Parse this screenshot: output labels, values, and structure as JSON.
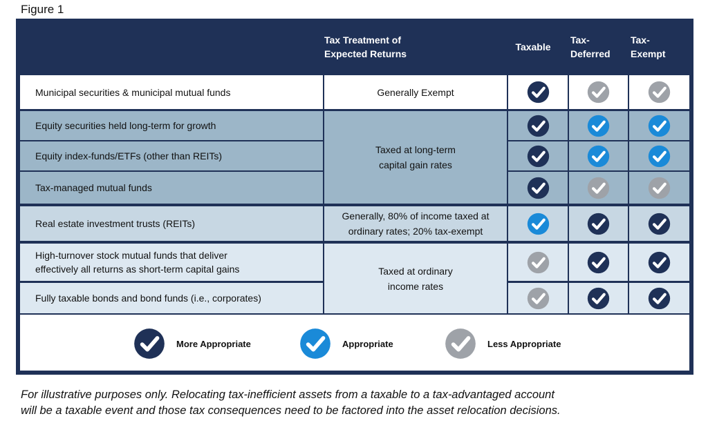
{
  "figure_label": "Figure 1",
  "header": {
    "treatment_line1": "Tax Treatment of",
    "treatment_line2": "Expected Returns",
    "taxable": "Taxable",
    "deferred_line1": "Tax-",
    "deferred_line2": "Deferred",
    "exempt_line1": "Tax-",
    "exempt_line2": "Exempt"
  },
  "colors": {
    "more_appropriate": "#1f3157",
    "appropriate": "#1a8ad8",
    "less_appropriate": "#9ea2a8",
    "band_white": "#ffffff",
    "band_blue": "#9cb6c8",
    "band_light": "#c7d7e3",
    "band_pale": "#dde8f1"
  },
  "rows": [
    {
      "asset": "Municipal securities & municipal mutual funds",
      "ratings": [
        "more",
        "less",
        "less"
      ]
    },
    {
      "asset": "Equity securities held long-term for growth",
      "ratings": [
        "more",
        "appropriate",
        "appropriate"
      ]
    },
    {
      "asset": "Equity index-funds/ETFs (other than REITs)",
      "ratings": [
        "more",
        "appropriate",
        "appropriate"
      ]
    },
    {
      "asset": "Tax-managed mutual funds",
      "ratings": [
        "more",
        "less",
        "less"
      ]
    },
    {
      "asset": "Real estate investment trusts (REITs)",
      "ratings": [
        "appropriate",
        "more",
        "more"
      ]
    },
    {
      "asset_line1": "High-turnover stock mutual funds that deliver",
      "asset_line2": "effectively all returns as short-term capital gains",
      "ratings": [
        "less",
        "more",
        "more"
      ]
    },
    {
      "asset": "Fully taxable bonds and bond funds (i.e., corporates)",
      "ratings": [
        "less",
        "more",
        "more"
      ]
    }
  ],
  "treatments": [
    {
      "text": "Generally Exempt"
    },
    {
      "line1": "Taxed at long-term",
      "line2": "capital gain rates"
    },
    {
      "line1": "Generally, 80% of income taxed at",
      "line2": "ordinary rates; 20% tax-exempt"
    },
    {
      "line1": "Taxed at ordinary",
      "line2": "income rates"
    }
  ],
  "legend": {
    "more": "More Appropriate",
    "appropriate": "Appropriate",
    "less": "Less Appropriate"
  },
  "footnote_line1": "For illustrative purposes only. Relocating tax-inefficient assets from a taxable to a tax-advantaged account",
  "footnote_line2": "will be a taxable event and those tax consequences need to be factored into the asset relocation decisions."
}
